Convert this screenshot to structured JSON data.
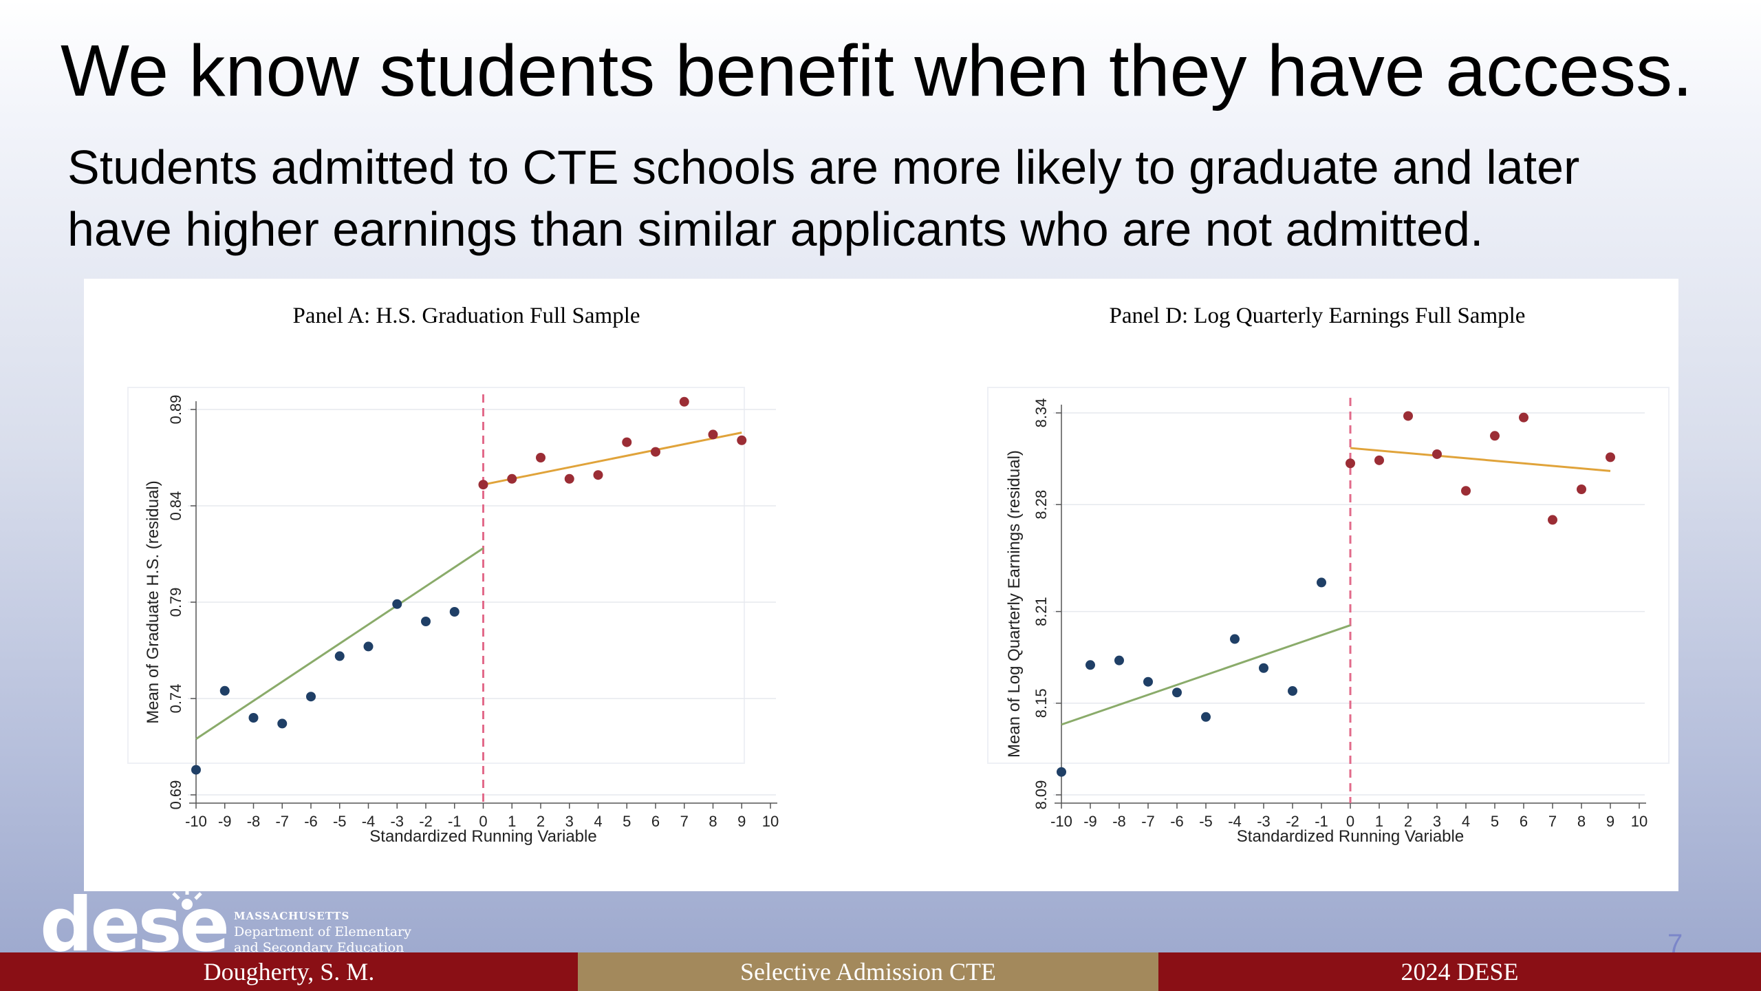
{
  "slide": {
    "title": "We know students benefit when they have access.",
    "subtitle_line1": "Students admitted to CTE schools are more likely to graduate and later",
    "subtitle_line2": "have higher earnings than similar applicants who are not admitted.",
    "page_number": "7"
  },
  "logo": {
    "word": "dese",
    "line1": "MASSACHUSETTS",
    "line2": "Department of Elementary",
    "line3": "and Secondary Education"
  },
  "footer": {
    "left": "Dougherty, S. M.",
    "center": "Selective Admission CTE",
    "right": "2024 DESE"
  },
  "colors": {
    "left_points": "#1f3f66",
    "right_points": "#9b2d35",
    "left_fit": "#8aab6a",
    "right_fit": "#e0a33a",
    "cutoff": "#e26a8a",
    "footer_dark": "#8a0f15",
    "footer_gold": "#a3895c"
  },
  "chart_data": [
    {
      "type": "scatter",
      "title": "Panel A: H.S. Graduation Full Sample",
      "xlabel": "Standardized Running Variable",
      "ylabel": "Mean of Graduate H.S. (residual)",
      "xlim": [
        -10,
        10
      ],
      "ylim": [
        0.69,
        0.89
      ],
      "xticks": [
        -10,
        -9,
        -8,
        -7,
        -6,
        -5,
        -4,
        -3,
        -2,
        -1,
        0,
        1,
        2,
        3,
        4,
        5,
        6,
        7,
        8,
        9,
        10
      ],
      "yticks": [
        0.69,
        0.74,
        0.79,
        0.84,
        0.89
      ],
      "ytick_labels": [
        "0.69",
        "0.74",
        "0.79",
        "0.84",
        "0.89"
      ],
      "grid": "horizontal",
      "cutoff": 0,
      "series": [
        {
          "x": [
            -10,
            -9,
            -8,
            -7,
            -6,
            -5,
            -4,
            -3,
            -2,
            -1
          ],
          "y": [
            0.703,
            0.744,
            0.73,
            0.727,
            0.741,
            0.762,
            0.767,
            0.789,
            0.78,
            0.785
          ]
        },
        {
          "x": [
            0,
            1,
            2,
            3,
            4,
            5,
            6,
            7,
            8,
            9
          ],
          "y": [
            0.851,
            0.854,
            0.865,
            0.854,
            0.856,
            0.873,
            0.868,
            0.894,
            0.877,
            0.874
          ]
        }
      ],
      "fits": [
        {
          "x": [
            -10,
            0
          ],
          "y": [
            0.719,
            0.818
          ]
        },
        {
          "x": [
            0,
            9
          ],
          "y": [
            0.851,
            0.878
          ]
        }
      ]
    },
    {
      "type": "scatter",
      "title": "Panel D: Log Quarterly Earnings Full Sample",
      "xlabel": "Standardized Running Variable",
      "ylabel": "Mean of Log Quarterly Earnings (residual)",
      "xlim": [
        -10,
        10
      ],
      "ylim": [
        8.09,
        8.34
      ],
      "xticks": [
        -10,
        -9,
        -8,
        -7,
        -6,
        -5,
        -4,
        -3,
        -2,
        -1,
        0,
        1,
        2,
        3,
        4,
        5,
        6,
        7,
        8,
        9,
        10
      ],
      "yticks": [
        8.09,
        8.15,
        8.21,
        8.28,
        8.34
      ],
      "ytick_labels": [
        "8.09",
        "8.15",
        "8.21",
        "8.28",
        "8.34"
      ],
      "grid": "horizontal",
      "cutoff": 0,
      "series": [
        {
          "x": [
            -10,
            -9,
            -8,
            -7,
            -6,
            -5,
            -4,
            -3,
            -2,
            -1
          ],
          "y": [
            8.105,
            8.175,
            8.178,
            8.164,
            8.157,
            8.141,
            8.192,
            8.173,
            8.158,
            8.229
          ]
        },
        {
          "x": [
            0,
            1,
            2,
            3,
            4,
            5,
            6,
            7,
            8,
            9
          ],
          "y": [
            8.307,
            8.309,
            8.338,
            8.313,
            8.289,
            8.325,
            8.337,
            8.27,
            8.29,
            8.311
          ]
        }
      ],
      "fits": [
        {
          "x": [
            -10,
            0
          ],
          "y": [
            8.136,
            8.201
          ]
        },
        {
          "x": [
            0,
            9
          ],
          "y": [
            8.317,
            8.302
          ]
        }
      ]
    }
  ]
}
